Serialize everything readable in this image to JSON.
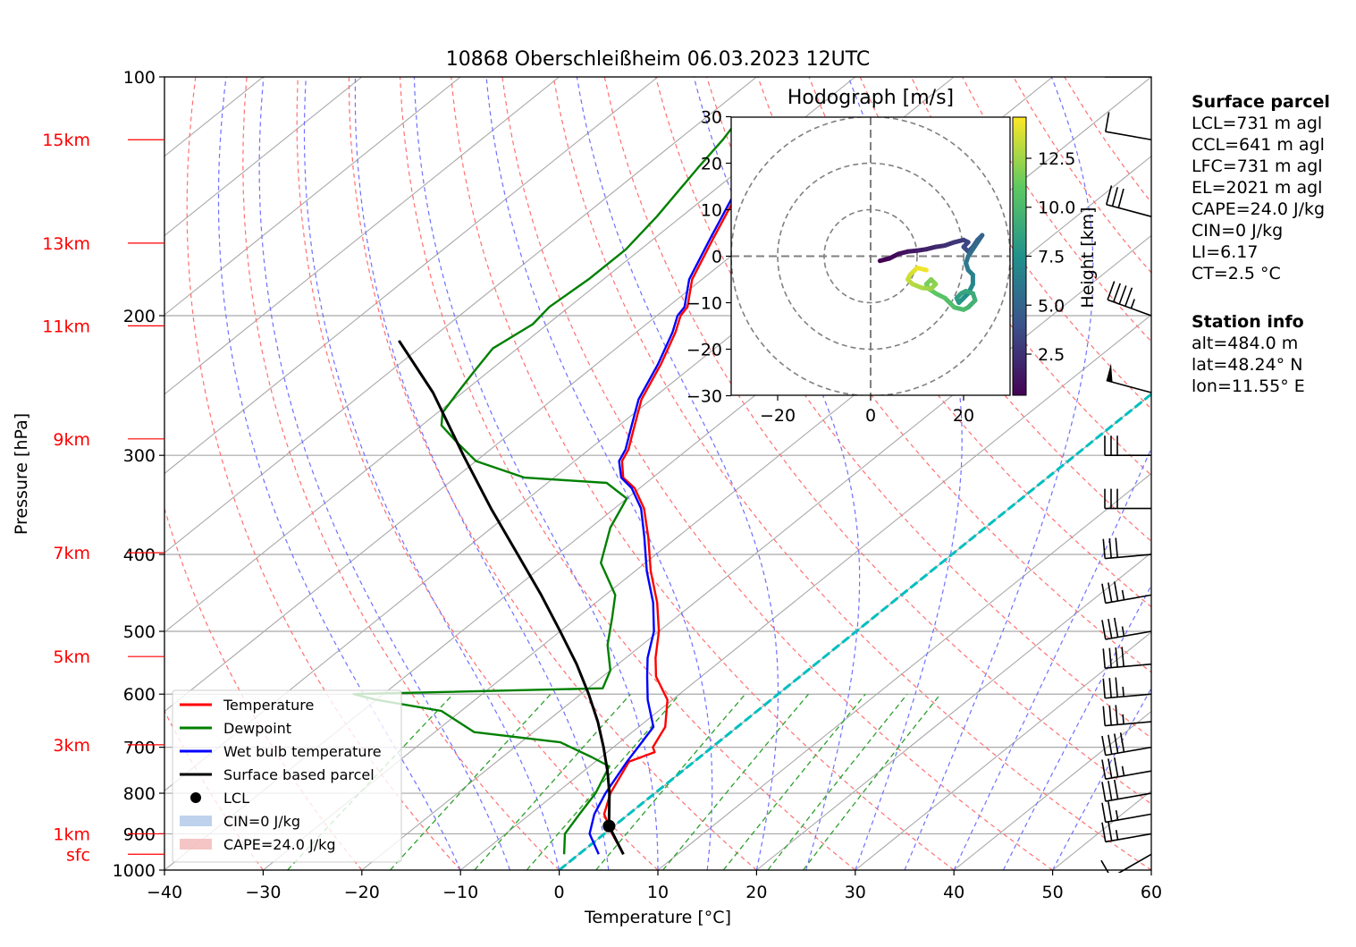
{
  "title": "10868 Oberschleißheim 06.03.2023 12UTC",
  "colors": {
    "temperature": "#ff0000",
    "dewpoint": "#008000",
    "wetbulb": "#0000ff",
    "parcel": "#000000",
    "isotherm": "#a9a9a9",
    "dry_adiabat": "#ff7070",
    "moist_adiabat": "#7070ff",
    "mixing_ratio": "#2ca02c",
    "zero_isotherm": "#00bfbf",
    "cin_fill": "#aec7e8",
    "cape_fill": "#f2b6b6"
  },
  "chart_data": {
    "type": "skew-t log-p",
    "xlabel": "Temperature [°C]",
    "ylabel": "Pressure [hPa]",
    "xlim": [
      -40,
      60
    ],
    "ylim": [
      1000,
      100
    ],
    "x_ticks": [
      "−40",
      "−30",
      "−20",
      "−10",
      "0",
      "10",
      "20",
      "30",
      "40",
      "50",
      "60"
    ],
    "y_ticks": [
      1000,
      900,
      800,
      700,
      600,
      500,
      400,
      300,
      200,
      100
    ],
    "height_labels": [
      {
        "label": "15km",
        "p": 120
      },
      {
        "label": "13km",
        "p": 162
      },
      {
        "label": "11km",
        "p": 206
      },
      {
        "label": "9km",
        "p": 286
      },
      {
        "label": "7km",
        "p": 398
      },
      {
        "label": "5km",
        "p": 538
      },
      {
        "label": "3km",
        "p": 695
      },
      {
        "label": "1km",
        "p": 900
      },
      {
        "label": "sfc",
        "p": 955
      }
    ],
    "series": [
      {
        "name": "Temperature",
        "key": "temperature",
        "points": [
          [
            955,
            4.5
          ],
          [
            900,
            0.8
          ],
          [
            850,
            -2.5
          ],
          [
            800,
            -4.5
          ],
          [
            730,
            -6.6
          ],
          [
            710,
            -5.2
          ],
          [
            700,
            -6.0
          ],
          [
            660,
            -7.3
          ],
          [
            610,
            -10.5
          ],
          [
            570,
            -14.6
          ],
          [
            540,
            -17.0
          ],
          [
            500,
            -20.0
          ],
          [
            460,
            -23.8
          ],
          [
            420,
            -28.4
          ],
          [
            380,
            -33.0
          ],
          [
            350,
            -37.0
          ],
          [
            330,
            -40.5
          ],
          [
            320,
            -43.0
          ],
          [
            305,
            -45.2
          ],
          [
            295,
            -46.0
          ],
          [
            280,
            -47.8
          ],
          [
            255,
            -51.0
          ],
          [
            230,
            -53.5
          ],
          [
            210,
            -56.0
          ],
          [
            200,
            -57.6
          ],
          [
            195,
            -58.0
          ],
          [
            180,
            -61.0
          ],
          [
            160,
            -64.0
          ],
          [
            140,
            -67.3
          ],
          [
            130,
            -69.0
          ],
          [
            120,
            -70.8
          ],
          [
            113,
            -72.5
          ]
        ]
      },
      {
        "name": "Dewpoint",
        "key": "dewpoint",
        "points": [
          [
            955,
            -1.5
          ],
          [
            900,
            -4.0
          ],
          [
            850,
            -5.0
          ],
          [
            800,
            -6.0
          ],
          [
            740,
            -8.0
          ],
          [
            720,
            -11.0
          ],
          [
            690,
            -16.0
          ],
          [
            670,
            -26.0
          ],
          [
            630,
            -32.0
          ],
          [
            610,
            -40.0
          ],
          [
            600,
            -43.0
          ],
          [
            590,
            -18.5
          ],
          [
            560,
            -20.0
          ],
          [
            520,
            -23.5
          ],
          [
            480,
            -26.5
          ],
          [
            450,
            -29.0
          ],
          [
            410,
            -34.5
          ],
          [
            370,
            -38.0
          ],
          [
            340,
            -40.0
          ],
          [
            325,
            -44.0
          ],
          [
            320,
            -53.0
          ],
          [
            305,
            -60.0
          ],
          [
            290,
            -64.0
          ],
          [
            275,
            -68.0
          ],
          [
            265,
            -69.5
          ],
          [
            250,
            -70.5
          ],
          [
            235,
            -71.5
          ],
          [
            220,
            -72.5
          ],
          [
            205,
            -71.5
          ],
          [
            195,
            -72.0
          ],
          [
            180,
            -71.5
          ],
          [
            165,
            -71.5
          ],
          [
            150,
            -72.5
          ],
          [
            130,
            -74.5
          ],
          [
            120,
            -75.5
          ],
          [
            113,
            -76.5
          ]
        ]
      },
      {
        "name": "Wet bulb temperature",
        "key": "wetbulb",
        "points": [
          [
            955,
            2.0
          ],
          [
            900,
            -1.5
          ],
          [
            850,
            -3.5
          ],
          [
            800,
            -5.0
          ],
          [
            730,
            -6.8
          ],
          [
            700,
            -7.5
          ],
          [
            660,
            -8.5
          ],
          [
            610,
            -12.5
          ],
          [
            570,
            -15.5
          ],
          [
            540,
            -17.8
          ],
          [
            500,
            -20.5
          ],
          [
            460,
            -24.2
          ],
          [
            420,
            -28.8
          ],
          [
            380,
            -33.4
          ],
          [
            350,
            -37.3
          ],
          [
            330,
            -40.8
          ],
          [
            320,
            -43.2
          ],
          [
            305,
            -45.5
          ],
          [
            295,
            -46.3
          ],
          [
            280,
            -48.1
          ],
          [
            255,
            -51.3
          ],
          [
            230,
            -53.8
          ],
          [
            210,
            -56.3
          ],
          [
            200,
            -57.9
          ],
          [
            195,
            -58.3
          ],
          [
            180,
            -61.3
          ],
          [
            160,
            -64.3
          ],
          [
            140,
            -67.6
          ],
          [
            130,
            -69.3
          ],
          [
            120,
            -71.1
          ],
          [
            113,
            -72.8
          ]
        ]
      },
      {
        "name": "Surface based parcel",
        "key": "parcel",
        "points": [
          [
            955,
            4.5
          ],
          [
            880,
            -0.5
          ],
          [
            860,
            -1.5
          ],
          [
            800,
            -4.6
          ],
          [
            750,
            -7.6
          ],
          [
            700,
            -11.0
          ],
          [
            650,
            -14.8
          ],
          [
            600,
            -19.2
          ],
          [
            550,
            -24.2
          ],
          [
            500,
            -30.0
          ],
          [
            450,
            -36.5
          ],
          [
            400,
            -44.0
          ],
          [
            350,
            -52.5
          ],
          [
            300,
            -62.0
          ],
          [
            250,
            -73.0
          ],
          [
            215,
            -83.0
          ]
        ]
      }
    ],
    "lcl": {
      "p": 880,
      "t": -0.5
    },
    "legend": [
      "Temperature",
      "Dewpoint",
      "Wet bulb temperature",
      "Surface based parcel",
      "LCL",
      "CIN=0 J/kg",
      "CAPE=24.0 J/kg"
    ],
    "legend_position": "lower-left",
    "wind_barbs": [
      {
        "p": 955,
        "speed_kt": 10,
        "dir_deg": 240
      },
      {
        "p": 900,
        "speed_kt": 25,
        "dir_deg": 260
      },
      {
        "p": 850,
        "speed_kt": 25,
        "dir_deg": 260
      },
      {
        "p": 800,
        "speed_kt": 30,
        "dir_deg": 260
      },
      {
        "p": 750,
        "speed_kt": 35,
        "dir_deg": 260
      },
      {
        "p": 700,
        "speed_kt": 40,
        "dir_deg": 260
      },
      {
        "p": 650,
        "speed_kt": 35,
        "dir_deg": 265
      },
      {
        "p": 600,
        "speed_kt": 35,
        "dir_deg": 265
      },
      {
        "p": 550,
        "speed_kt": 40,
        "dir_deg": 265
      },
      {
        "p": 500,
        "speed_kt": 35,
        "dir_deg": 260
      },
      {
        "p": 450,
        "speed_kt": 35,
        "dir_deg": 260
      },
      {
        "p": 400,
        "speed_kt": 30,
        "dir_deg": 265
      },
      {
        "p": 350,
        "speed_kt": 30,
        "dir_deg": 270
      },
      {
        "p": 300,
        "speed_kt": 30,
        "dir_deg": 270
      },
      {
        "p": 250,
        "speed_kt": 50,
        "dir_deg": 285
      },
      {
        "p": 200,
        "speed_kt": 45,
        "dir_deg": 290
      },
      {
        "p": 150,
        "speed_kt": 30,
        "dir_deg": 285
      },
      {
        "p": 120,
        "speed_kt": 10,
        "dir_deg": 280
      },
      {
        "p": 100,
        "speed_kt": 5,
        "dir_deg": 270
      }
    ],
    "hodograph": {
      "title": "Hodograph [m/s]",
      "xlim": [
        -30,
        30
      ],
      "ylim": [
        -30,
        30
      ],
      "x_ticks": [
        "−20",
        "0",
        "20"
      ],
      "y_ticks": [
        "30",
        "20",
        "10",
        "0",
        "−10",
        "−20",
        "−30"
      ],
      "rings": [
        10,
        20,
        30
      ],
      "colorbar_label": "Height [km]",
      "colorbar_ticks": [
        "2.5",
        "5.0",
        "7.5",
        "10.0",
        "12.5"
      ],
      "points": [
        [
          2,
          -1
        ],
        [
          4,
          -0.5
        ],
        [
          6,
          0.5
        ],
        [
          8,
          1
        ],
        [
          10,
          1.2
        ],
        [
          12,
          1.5
        ],
        [
          14,
          2
        ],
        [
          16,
          2.3
        ],
        [
          18,
          3
        ],
        [
          20,
          3.5
        ],
        [
          21,
          3
        ],
        [
          20,
          2
        ],
        [
          21,
          1
        ],
        [
          22,
          2
        ],
        [
          23,
          3.5
        ],
        [
          24,
          4.5
        ],
        [
          23,
          3
        ],
        [
          22,
          1.5
        ],
        [
          21,
          0
        ],
        [
          20.5,
          -1.5
        ],
        [
          21,
          -3
        ],
        [
          22,
          -4
        ],
        [
          22,
          -6
        ],
        [
          21,
          -8
        ],
        [
          20,
          -9
        ],
        [
          19,
          -10
        ],
        [
          18.5,
          -9
        ],
        [
          19.5,
          -8
        ],
        [
          20.5,
          -7.5
        ],
        [
          22,
          -8
        ],
        [
          22.5,
          -9.5
        ],
        [
          21,
          -11
        ],
        [
          20,
          -11.5
        ],
        [
          18,
          -11
        ],
        [
          16,
          -9
        ],
        [
          14,
          -8
        ],
        [
          12.5,
          -7
        ],
        [
          12,
          -6
        ],
        [
          13,
          -5
        ],
        [
          14,
          -6
        ],
        [
          13,
          -7
        ],
        [
          11,
          -6.8
        ],
        [
          9,
          -6
        ],
        [
          8,
          -5
        ],
        [
          8.5,
          -4
        ],
        [
          9.5,
          -3
        ],
        [
          10,
          -2.5
        ],
        [
          12,
          -3
        ]
      ]
    }
  },
  "surface_parcel": {
    "header": "Surface parcel",
    "lines": [
      "LCL=731 m agl",
      "CCL=641 m agl",
      "LFC=731 m agl",
      "EL=2021 m agl",
      "CAPE=24.0 J/kg",
      "CIN=0 J/kg",
      "LI=6.17",
      "CT=2.5 °C"
    ]
  },
  "station_info": {
    "header": "Station info",
    "lines": [
      "alt=484.0 m",
      "lat=48.24° N",
      "lon=11.55° E"
    ]
  }
}
